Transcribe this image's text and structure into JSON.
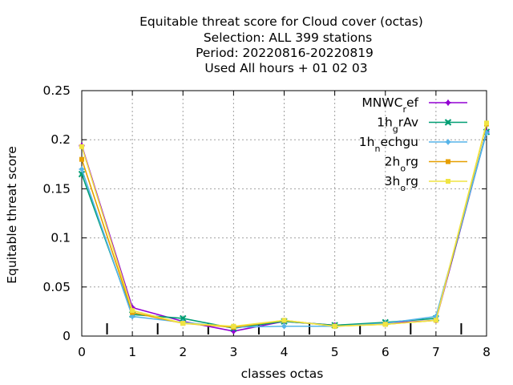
{
  "chart_data": {
    "type": "line",
    "title_lines": [
      "Equitable threat score  for Cloud cover (octas)",
      "Selection: ALL    399 stations",
      "Period: 20220816-20220819",
      "Used  All hours  + 01 02 03"
    ],
    "xlabel": "classes octas",
    "ylabel": "Equitable threat score",
    "xlim": [
      0,
      8
    ],
    "ylim": [
      0,
      0.25
    ],
    "x_ticks": [
      "0",
      "1",
      "2",
      "3",
      "4",
      "5",
      "6",
      "7",
      "8"
    ],
    "y_ticks": [
      "0",
      "0.05",
      "0.1",
      "0.15",
      "0.2",
      "0.25"
    ],
    "grid": true,
    "legend_position": "top-right",
    "x": [
      0,
      1,
      2,
      3,
      4,
      5,
      6,
      7,
      8
    ],
    "series": [
      {
        "name_main": "MNWC",
        "name_sub": "r",
        "name_tail": "ef",
        "color": "#9400d3",
        "marker": "plus",
        "values": [
          0.194,
          0.029,
          0.015,
          0.005,
          0.015,
          0.011,
          0.013,
          0.016,
          0.208
        ]
      },
      {
        "name_main": "1h",
        "name_sub": "g",
        "name_tail": "rAv",
        "color": "#009e73",
        "marker": "cross",
        "values": [
          0.165,
          0.022,
          0.018,
          0.008,
          0.015,
          0.011,
          0.014,
          0.018,
          0.208
        ]
      },
      {
        "name_main": "1h",
        "name_sub": "n",
        "name_tail": "echgu",
        "color": "#56b4e9",
        "marker": "star",
        "values": [
          0.17,
          0.02,
          0.014,
          0.009,
          0.01,
          0.01,
          0.013,
          0.02,
          0.207
        ]
      },
      {
        "name_main": "2h",
        "name_sub": "o",
        "name_tail": "rg",
        "color": "#e69f00",
        "marker": "box",
        "values": [
          0.18,
          0.024,
          0.013,
          0.009,
          0.016,
          0.01,
          0.012,
          0.016,
          0.216
        ]
      },
      {
        "name_main": "3h",
        "name_sub": "o",
        "name_tail": "rg",
        "color": "#f0e442",
        "marker": "box",
        "values": [
          0.193,
          0.026,
          0.013,
          0.01,
          0.016,
          0.01,
          0.012,
          0.016,
          0.217
        ]
      }
    ],
    "extra_minor_ticks_x": [
      0.5,
      1.5,
      2.5,
      3.5,
      4.5,
      5.5,
      6.5,
      7.5
    ]
  }
}
